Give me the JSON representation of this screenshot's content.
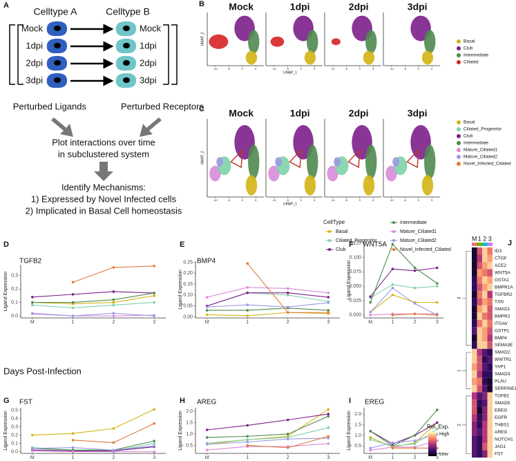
{
  "panel_a": {
    "label": "A",
    "celltype_a": "Celltype A",
    "celltype_b": "Celltype B",
    "rows_a": [
      "Mock",
      "1dpi",
      "2dpi",
      "3dpi"
    ],
    "rows_b": [
      "Mock",
      "1dpi",
      "2dpi",
      "3dpi"
    ],
    "ligands": "Perturbed Ligands",
    "receptors": "Perturbed Receptors",
    "plot_line1": "Plot interactions over time",
    "plot_line2": "in subclustered system",
    "identify": "Identify Mechanisms:",
    "item1": "1) Expressed by Novel Infected cells",
    "item2": "2) Implicated in Basal Cell homeostasis"
  },
  "umap_panels": [
    {
      "label": "B",
      "titles": [
        "Mock",
        "1dpi",
        "2dpi",
        "3dpi"
      ],
      "x_label": "UMAP_1",
      "y_label": "UMAP_2",
      "xticks": [
        -10,
        -5,
        0,
        5
      ],
      "legend": [
        {
          "name": "Basal",
          "color": "#d4b414"
        },
        {
          "name": "Club",
          "color": "#7b1f8a"
        },
        {
          "name": "Intermediate",
          "color": "#4f8a4f"
        },
        {
          "name": "Ciliated",
          "color": "#d62424"
        }
      ]
    },
    {
      "label": "C",
      "titles": [
        "Mock",
        "1dpi",
        "2dpi",
        "3dpi"
      ],
      "x_label": "UMAP_1",
      "y_label": "UMAP_2",
      "xticks": [
        -10,
        -5,
        0,
        5
      ],
      "legend": [
        {
          "name": "Basal",
          "color": "#d4b414"
        },
        {
          "name": "Ciliated_Progenitor",
          "color": "#7fd1a8"
        },
        {
          "name": "Club",
          "color": "#7b1f8a"
        },
        {
          "name": "Intermediate",
          "color": "#4f8a4f"
        },
        {
          "name": "Mature_Ciliated1",
          "color": "#d98ad9"
        },
        {
          "name": "Mature_Ciliated2",
          "color": "#9a9ae6"
        },
        {
          "name": "Novel_Infected_Ciliated",
          "color": "#e07b39"
        }
      ]
    }
  ],
  "legend_title": "CellType",
  "shared_x_label": "Days Post-Infection",
  "chart_data": [
    {
      "type": "line",
      "panel": "D",
      "title": "TGFB2",
      "y_label": "Ligand Expression",
      "categories": [
        "M",
        "1",
        "2",
        "3"
      ],
      "ylim": [
        -0.015,
        0.38
      ],
      "yticks": [
        {
          "value": 0,
          "label": "0.0"
        },
        0.1,
        0.2,
        0.3
      ],
      "series": [
        {
          "name": "Basal",
          "color": "#d4b414",
          "values": [
            0.1,
            0.09,
            0.1,
            0.15
          ]
        },
        {
          "name": "Ciliated_Progenitor",
          "color": "#7fd1a8",
          "values": [
            0.08,
            0.06,
            0.08,
            0.1
          ]
        },
        {
          "name": "Club",
          "color": "#7b1f8a",
          "values": [
            0.14,
            0.16,
            0.18,
            0.17
          ]
        },
        {
          "name": "Intermediate",
          "color": "#4f8a4f",
          "values": [
            0.1,
            0.1,
            0.12,
            0.17
          ]
        },
        {
          "name": "Mature_Ciliated1",
          "color": "#d98ad9",
          "values": [
            0.015,
            0.0,
            0.0,
            0.005
          ]
        },
        {
          "name": "Mature_Ciliated2",
          "color": "#9a9ae6",
          "values": [
            0.02,
            0.0,
            0.02,
            0.0
          ]
        },
        {
          "name": "Novel_Infected_Ciliated",
          "color": "#e07b39",
          "values": [
            null,
            0.25,
            0.36,
            0.37
          ]
        }
      ]
    },
    {
      "type": "line",
      "panel": "E",
      "title": "BMP4",
      "y_label": "Ligand Expression",
      "categories": [
        "M",
        "1",
        "2",
        "3"
      ],
      "ylim": [
        -0.005,
        0.255
      ],
      "yticks": [
        {
          "value": 0,
          "label": "0.00"
        },
        {
          "value": 0.05,
          "label": "0.05"
        },
        {
          "value": 0.1,
          "label": "0.10"
        },
        {
          "value": 0.15,
          "label": "0.15"
        },
        {
          "value": 0.2,
          "label": "0.20"
        },
        {
          "value": 0.25,
          "label": "0.25"
        }
      ],
      "series": [
        {
          "name": "Basal",
          "color": "#d4b414",
          "values": [
            0.01,
            0.005,
            0.02,
            0.015
          ]
        },
        {
          "name": "Ciliated_Progenitor",
          "color": "#7fd1a8",
          "values": [
            0.05,
            0.11,
            0.1,
            0.07
          ]
        },
        {
          "name": "Club",
          "color": "#7b1f8a",
          "values": [
            0.05,
            0.11,
            0.11,
            0.09
          ]
        },
        {
          "name": "Intermediate",
          "color": "#4f8a4f",
          "values": [
            0.03,
            0.03,
            0.04,
            0.03
          ]
        },
        {
          "name": "Mature_Ciliated1",
          "color": "#d98ad9",
          "values": [
            0.09,
            0.135,
            0.13,
            0.11
          ]
        },
        {
          "name": "Mature_Ciliated2",
          "color": "#9a9ae6",
          "values": [
            0.045,
            0.055,
            0.045,
            0.065
          ]
        },
        {
          "name": "Novel_Infected_Ciliated",
          "color": "#e07b39",
          "values": [
            null,
            0.245,
            0.02,
            0.02
          ]
        }
      ]
    },
    {
      "type": "line",
      "panel": "F",
      "title": "WNT5A",
      "y_label": "Ligand Expression",
      "categories": [
        "M",
        "1",
        "2",
        "3"
      ],
      "ylim": [
        -0.005,
        0.127
      ],
      "yticks": [
        {
          "value": 0,
          "label": "0.000"
        },
        0.025,
        {
          "value": 0.05,
          "label": "0.050"
        },
        0.075,
        {
          "value": 0.1,
          "label": "0.100"
        },
        0.125
      ],
      "series": [
        {
          "name": "Basal",
          "color": "#d4b414",
          "values": [
            0.005,
            0.035,
            0.022,
            0.022
          ]
        },
        {
          "name": "Ciliated_Progenitor",
          "color": "#7fd1a8",
          "values": [
            0.03,
            0.053,
            0.047,
            0.05
          ]
        },
        {
          "name": "Club",
          "color": "#7b1f8a",
          "values": [
            0.032,
            0.08,
            0.077,
            0.082
          ]
        },
        {
          "name": "Intermediate",
          "color": "#4f8a4f",
          "values": [
            0.022,
            0.123,
            0.082,
            0.055
          ]
        },
        {
          "name": "Mature_Ciliated1",
          "color": "#d98ad9",
          "values": [
            0.0,
            0.002,
            0.002,
            0.002
          ]
        },
        {
          "name": "Mature_Ciliated2",
          "color": "#9a9ae6",
          "values": [
            0.005,
            0.047,
            0.02,
            0.0
          ]
        },
        {
          "name": "Novel_Infected_Ciliated",
          "color": "#e07b39",
          "values": [
            null,
            0.0,
            0.002,
            0.0
          ]
        }
      ]
    },
    {
      "type": "line",
      "panel": "G",
      "title": "FST",
      "y_label": "Ligand Expression",
      "categories": [
        "M",
        "1",
        "2",
        "3"
      ],
      "ylim": [
        -0.02,
        0.53
      ],
      "yticks": [
        {
          "value": 0,
          "label": "0.0"
        },
        0.1,
        0.2,
        0.3,
        0.4,
        0.5
      ],
      "series": [
        {
          "name": "Basal",
          "color": "#d4b414",
          "values": [
            0.2,
            0.22,
            0.28,
            0.51
          ]
        },
        {
          "name": "Ciliated_Progenitor",
          "color": "#7fd1a8",
          "values": [
            0.05,
            0.02,
            0.01,
            0.1
          ]
        },
        {
          "name": "Club",
          "color": "#7b1f8a",
          "values": [
            0.02,
            0.01,
            0.01,
            0.06
          ]
        },
        {
          "name": "Intermediate",
          "color": "#4f8a4f",
          "values": [
            0.04,
            0.02,
            0.02,
            0.13
          ]
        },
        {
          "name": "Mature_Ciliated1",
          "color": "#d98ad9",
          "values": [
            0.01,
            0.0,
            0.0,
            0.0
          ]
        },
        {
          "name": "Mature_Ciliated2",
          "color": "#9a9ae6",
          "values": [
            0.04,
            0.05,
            0.02,
            0.07
          ]
        },
        {
          "name": "Novel_Infected_Ciliated",
          "color": "#e07b39",
          "values": [
            null,
            0.14,
            0.11,
            0.34
          ]
        }
      ]
    },
    {
      "type": "line",
      "panel": "H",
      "title": "AREG",
      "y_label": "Ligand Expression",
      "categories": [
        "M",
        "1",
        "2",
        "3"
      ],
      "ylim": [
        0.15,
        2.15
      ],
      "yticks": [
        0.5,
        {
          "value": 1,
          "label": "1.0"
        },
        1.5,
        {
          "value": 2,
          "label": "2.0"
        }
      ],
      "series": [
        {
          "name": "Basal",
          "color": "#d4b414",
          "values": [
            0.55,
            0.75,
            0.9,
            2.08
          ]
        },
        {
          "name": "Ciliated_Progenitor",
          "color": "#7fd1a8",
          "values": [
            0.6,
            0.75,
            0.85,
            1.28
          ]
        },
        {
          "name": "Club",
          "color": "#7b1f8a",
          "values": [
            1.18,
            1.38,
            1.62,
            1.88
          ]
        },
        {
          "name": "Intermediate",
          "color": "#4f8a4f",
          "values": [
            0.85,
            0.9,
            1.0,
            1.78
          ]
        },
        {
          "name": "Mature_Ciliated1",
          "color": "#d98ad9",
          "values": [
            0.3,
            0.45,
            0.45,
            0.58
          ]
        },
        {
          "name": "Mature_Ciliated2",
          "color": "#9a9ae6",
          "values": [
            0.55,
            0.65,
            0.78,
            0.82
          ]
        },
        {
          "name": "Novel_Infected_Ciliated",
          "color": "#e07b39",
          "values": [
            null,
            0.5,
            0.4,
            0.9
          ]
        }
      ]
    },
    {
      "type": "line",
      "panel": "I",
      "title": "EREG",
      "y_label": "Ligand Expression",
      "categories": [
        "M",
        "1",
        "2",
        "3"
      ],
      "ylim": [
        0.15,
        2.3
      ],
      "yticks": [
        0.5,
        {
          "value": 1,
          "label": "1.0"
        },
        1.5,
        {
          "value": 2,
          "label": "2.0"
        }
      ],
      "series": [
        {
          "name": "Basal",
          "color": "#d4b414",
          "values": [
            0.9,
            0.45,
            0.65,
            1.6
          ]
        },
        {
          "name": "Ciliated_Progenitor",
          "color": "#7fd1a8",
          "values": [
            0.8,
            0.5,
            0.6,
            1.3
          ]
        },
        {
          "name": "Club",
          "color": "#7b1f8a",
          "values": [
            1.2,
            0.6,
            1.0,
            1.6
          ]
        },
        {
          "name": "Intermediate",
          "color": "#4f8a4f",
          "values": [
            1.2,
            0.5,
            1.0,
            2.2
          ]
        },
        {
          "name": "Mature_Ciliated1",
          "color": "#d98ad9",
          "values": [
            0.3,
            0.45,
            0.45,
            0.75
          ]
        },
        {
          "name": "Mature_Ciliated2",
          "color": "#9a9ae6",
          "values": [
            0.4,
            0.65,
            0.75,
            1.05
          ]
        },
        {
          "name": "Novel_Infected_Ciliated",
          "color": "#e07b39",
          "values": [
            null,
            0.4,
            0.4,
            0.4
          ]
        }
      ]
    },
    {
      "type": "heatmap",
      "panel": "J",
      "columns": [
        "M",
        "1",
        "2",
        "3"
      ],
      "cluster_labels": [
        "3",
        "1",
        "2"
      ],
      "legend_title": "Rel. Exp.",
      "legend_high": "High",
      "legend_low": "Low",
      "rows": [
        "ID3",
        "CTGF",
        "ACE2",
        "WNT5A",
        "GSTA1",
        "BMPR1A",
        "TGFBR2",
        "TXN",
        "SMAD1",
        "BMPR2",
        "ITGAV",
        "GSTP1",
        "BMP4",
        "SEMA3E",
        "SMAD2",
        "WWTR1",
        "YAP1",
        "SMAD3",
        "PLAU",
        "SERPINE1",
        "TGFB2",
        "SMAD5",
        "EREG",
        "EGFR",
        "THBS1",
        "AREG",
        "NOTCH1",
        "JAG1",
        "FST"
      ],
      "values": [
        [
          0.1,
          0.6,
          0.9,
          0.7
        ],
        [
          0.1,
          0.5,
          0.9,
          0.8
        ],
        [
          0.1,
          0.6,
          0.8,
          0.9
        ],
        [
          0.1,
          0.8,
          0.7,
          0.6
        ],
        [
          0.2,
          0.7,
          0.9,
          0.8
        ],
        [
          0.2,
          0.6,
          0.8,
          0.9
        ],
        [
          0.1,
          0.7,
          0.9,
          0.5
        ],
        [
          0.2,
          0.6,
          0.8,
          0.7
        ],
        [
          0.1,
          0.8,
          0.9,
          0.6
        ],
        [
          0.1,
          0.9,
          0.7,
          0.6
        ],
        [
          0.2,
          0.7,
          0.9,
          0.7
        ],
        [
          0.3,
          0.9,
          0.8,
          0.6
        ],
        [
          0.1,
          0.9,
          0.8,
          0.5
        ],
        [
          0.2,
          0.9,
          0.9,
          0.6
        ],
        [
          0.9,
          0.5,
          0.3,
          0.2
        ],
        [
          0.9,
          0.6,
          0.2,
          0.3
        ],
        [
          0.8,
          0.6,
          0.3,
          0.2
        ],
        [
          0.9,
          0.5,
          0.2,
          0.2
        ],
        [
          0.8,
          0.7,
          0.2,
          0.1
        ],
        [
          0.9,
          0.6,
          0.3,
          0.1
        ],
        [
          0.5,
          0.3,
          0.4,
          0.9
        ],
        [
          0.6,
          0.2,
          0.3,
          0.9
        ],
        [
          0.6,
          0.1,
          0.4,
          0.9
        ],
        [
          0.5,
          0.2,
          0.4,
          0.9
        ],
        [
          0.4,
          0.2,
          0.5,
          0.9
        ],
        [
          0.4,
          0.3,
          0.5,
          0.9
        ],
        [
          0.3,
          0.2,
          0.5,
          0.9
        ],
        [
          0.3,
          0.2,
          0.6,
          0.9
        ],
        [
          0.3,
          0.2,
          0.4,
          0.9
        ]
      ]
    }
  ]
}
